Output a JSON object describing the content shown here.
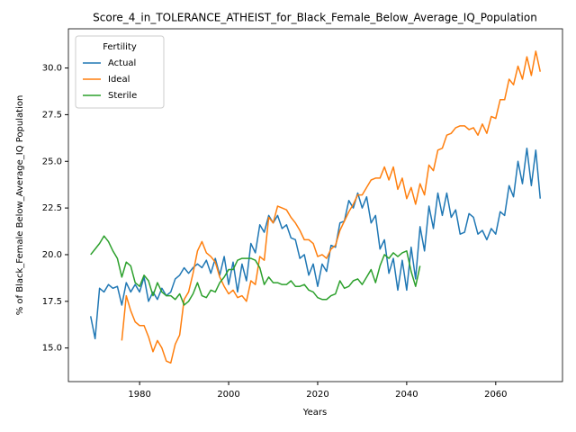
{
  "chart_data": {
    "type": "line",
    "title": "Score_4_in_TOLERANCE_ATHEIST_for_Black_Female_Below_Average_IQ_Population",
    "x_label": "Years",
    "y_label": "% of Black_Female Below_Average_IQ Population",
    "legend_title": "Fertility",
    "legend": "upper left",
    "grid": false,
    "xlim": [
      1964,
      2075
    ],
    "ylim": [
      13.2,
      32.1
    ],
    "xticks": [
      1980,
      2000,
      2020,
      2040,
      2060
    ],
    "yticks": [
      {
        "value": 15,
        "label": "15.0"
      },
      17.5,
      {
        "value": 20,
        "label": "20.0"
      },
      22.5,
      {
        "value": 25,
        "label": "25.0"
      },
      27.5,
      {
        "value": 30,
        "label": "30.0"
      }
    ],
    "x": [
      1969,
      1970,
      1971,
      1972,
      1973,
      1974,
      1975,
      1976,
      1977,
      1978,
      1979,
      1980,
      1981,
      1982,
      1983,
      1984,
      1985,
      1986,
      1987,
      1988,
      1989,
      1990,
      1991,
      1992,
      1993,
      1994,
      1995,
      1996,
      1997,
      1998,
      1999,
      2000,
      2001,
      2002,
      2003,
      2004,
      2005,
      2006,
      2007,
      2008,
      2009,
      2010,
      2011,
      2012,
      2013,
      2014,
      2015,
      2016,
      2017,
      2018,
      2019,
      2020,
      2021,
      2022,
      2023,
      2024,
      2025,
      2026,
      2027,
      2028,
      2029,
      2030,
      2031,
      2032,
      2033,
      2034,
      2035,
      2036,
      2037,
      2038,
      2039,
      2040,
      2041,
      2042,
      2043,
      2044,
      2045,
      2046,
      2047,
      2048,
      2049,
      2050,
      2051,
      2052,
      2053,
      2054,
      2055,
      2056,
      2057,
      2058,
      2059,
      2060,
      2061,
      2062,
      2063,
      2064,
      2065,
      2066,
      2067,
      2068,
      2069,
      2070
    ],
    "series": [
      {
        "name": "Actual",
        "color": "#1f77b4",
        "values": [
          16.7,
          15.5,
          18.2,
          18.0,
          18.4,
          18.2,
          18.3,
          17.3,
          18.5,
          18.0,
          18.4,
          18.0,
          18.8,
          17.5,
          18.0,
          17.6,
          18.2,
          17.8,
          18.0,
          18.7,
          18.9,
          19.3,
          19.0,
          19.3,
          19.5,
          19.3,
          19.7,
          19.0,
          19.8,
          18.9,
          19.9,
          18.4,
          19.6,
          18.0,
          19.5,
          18.6,
          20.6,
          20.1,
          21.6,
          21.2,
          22.1,
          21.7,
          22.1,
          21.4,
          21.6,
          20.9,
          20.8,
          19.8,
          20.0,
          18.9,
          19.5,
          18.3,
          19.5,
          19.1,
          20.5,
          20.4,
          21.7,
          21.8,
          22.9,
          22.5,
          23.3,
          22.5,
          23.1,
          21.7,
          22.1,
          20.3,
          20.8,
          19.0,
          19.8,
          18.1,
          19.7,
          18.1,
          20.4,
          18.7,
          21.5,
          20.2,
          22.6,
          21.4,
          23.3,
          22.1,
          23.3,
          22.0,
          22.4,
          21.1,
          21.2,
          22.2,
          22.0,
          21.1,
          21.3,
          20.8,
          21.4,
          21.1,
          22.3,
          22.1,
          23.7,
          23.1,
          25.0,
          23.8,
          25.7,
          23.7,
          25.6,
          23.0
        ]
      },
      {
        "name": "Ideal",
        "color": "#ff7f0e",
        "values": [
          null,
          null,
          null,
          null,
          null,
          null,
          null,
          15.4,
          17.8,
          17.0,
          16.4,
          16.2,
          16.2,
          15.6,
          14.8,
          15.4,
          15.0,
          14.3,
          14.2,
          15.2,
          15.7,
          17.6,
          18.0,
          19.0,
          20.2,
          20.7,
          20.1,
          19.9,
          19.6,
          18.8,
          18.3,
          17.9,
          18.1,
          17.7,
          17.8,
          17.5,
          18.6,
          18.4,
          19.9,
          19.7,
          22.0,
          21.7,
          22.6,
          22.5,
          22.4,
          22.0,
          21.7,
          21.3,
          20.8,
          20.8,
          20.6,
          19.9,
          20.0,
          19.8,
          20.3,
          20.5,
          21.3,
          21.8,
          22.3,
          22.7,
          23.2,
          23.2,
          23.6,
          24.0,
          24.1,
          24.1,
          24.7,
          24.0,
          24.7,
          23.5,
          24.1,
          23.0,
          23.6,
          22.7,
          23.8,
          23.2,
          24.8,
          24.5,
          25.6,
          25.7,
          26.4,
          26.5,
          26.8,
          26.9,
          26.9,
          26.7,
          26.8,
          26.4,
          27.0,
          26.5,
          27.4,
          27.3,
          28.3,
          28.3,
          29.4,
          29.1,
          30.1,
          29.4,
          30.6,
          29.6,
          30.9,
          29.8
        ]
      },
      {
        "name": "Sterile",
        "color": "#2ca02c",
        "values": [
          20.0,
          20.3,
          20.6,
          21.0,
          20.7,
          20.2,
          19.8,
          18.8,
          19.6,
          19.4,
          18.5,
          18.3,
          18.9,
          18.6,
          17.8,
          18.5,
          18.0,
          17.8,
          17.8,
          17.6,
          17.9,
          17.3,
          17.5,
          17.9,
          18.5,
          17.8,
          17.7,
          18.1,
          18.0,
          18.5,
          18.8,
          19.2,
          19.2,
          19.7,
          19.8,
          19.8,
          19.8,
          19.7,
          19.3,
          18.4,
          18.8,
          18.5,
          18.5,
          18.4,
          18.4,
          18.6,
          18.3,
          18.3,
          18.4,
          18.1,
          18.0,
          17.7,
          17.6,
          17.6,
          17.8,
          17.9,
          18.6,
          18.2,
          18.3,
          18.6,
          18.7,
          18.4,
          18.8,
          19.2,
          18.5,
          19.4,
          20.0,
          19.8,
          20.1,
          19.9,
          20.1,
          20.2,
          19.1,
          18.3,
          19.4,
          null,
          null,
          null,
          null,
          null,
          null,
          null,
          null,
          null,
          null,
          null,
          null,
          null,
          null,
          null,
          null,
          null,
          null,
          null,
          null,
          null,
          null,
          null,
          null,
          null,
          null,
          null
        ]
      }
    ]
  }
}
